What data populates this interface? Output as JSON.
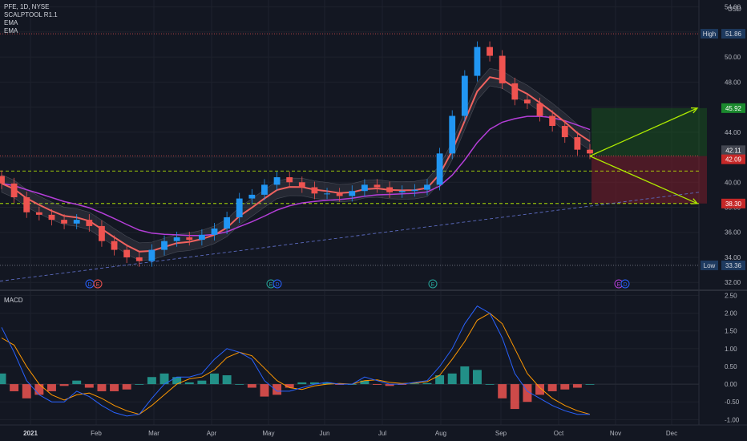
{
  "legend": {
    "symbol_line": "PFE, 1D, NYSE",
    "indicator_1": "SCALPTOOL R1.1",
    "indicator_2": "EMA",
    "indicator_3": "EMA"
  },
  "macd_title": "MACD",
  "price_tags": {
    "high_label": "High",
    "high_value": "51.86",
    "target_value": "45.92",
    "current_a": "42.11",
    "current_b": "42.09",
    "stop_value": "38.30",
    "low_label": "Low",
    "low_value": "33.36"
  },
  "earnings_markers": [
    "D",
    "E",
    "E",
    "D",
    "E",
    "E",
    "D"
  ],
  "colors": {
    "background": "#131722",
    "up": "#2196f3",
    "down": "#ef5350",
    "ema_fast": "#f0625f",
    "ema_slow": "#b43ed8",
    "macd_line": "#2962ff",
    "signal_line": "#ff9800",
    "hist_pos": "#26a69a",
    "hist_neg": "#ef5350",
    "target_zone": "#1b5e20",
    "stop_zone": "#7b1e2a",
    "arrow": "#aeea00"
  },
  "chart_data": [
    {
      "type": "candlestick",
      "title": "PFE, 1D, NYSE",
      "x_ticks": [
        "2021",
        "Feb",
        "Mar",
        "Apr",
        "May",
        "Jun",
        "Jul",
        "Aug",
        "Sep",
        "Oct",
        "Nov",
        "Dec"
      ],
      "y_unit": "USD",
      "y_ticks": [
        "54.00",
        "52.00",
        "50.00",
        "48.00",
        "46.00",
        "44.00",
        "42.00",
        "40.00",
        "38.00",
        "36.00",
        "34.00",
        "32.00"
      ],
      "ylim": [
        31.5,
        54.3
      ],
      "series": [
        {
          "name": "PFE",
          "values_close": [
            39.9,
            38.8,
            37.6,
            37.4,
            37.0,
            36.7,
            37.0,
            36.5,
            35.3,
            34.6,
            34.0,
            33.7,
            34.6,
            35.3,
            35.6,
            35.4,
            35.8,
            36.3,
            37.2,
            38.7,
            39.0,
            39.8,
            40.4,
            40.0,
            39.6,
            39.1,
            39.1,
            38.9,
            39.3,
            39.8,
            39.6,
            39.2,
            39.3,
            39.4,
            39.8,
            42.3,
            45.3,
            48.5,
            50.8,
            50.1,
            47.9,
            46.6,
            46.3,
            45.3,
            44.5,
            43.6,
            42.6,
            42.3
          ]
        }
      ],
      "levels": {
        "high": 51.86,
        "target": 45.92,
        "current": 42.09,
        "stop": 38.3,
        "low": 33.36
      }
    },
    {
      "type": "line",
      "title": "MACD",
      "y_ticks": [
        "2.50",
        "2.00",
        "1.50",
        "1.00",
        "0.50",
        "0.00",
        "-0.50",
        "-1.00"
      ],
      "ylim": [
        -1.15,
        2.6
      ],
      "series": [
        {
          "name": "MACD",
          "values": [
            1.6,
            0.9,
            0.1,
            -0.3,
            -0.5,
            -0.5,
            -0.2,
            -0.35,
            -0.6,
            -0.8,
            -0.9,
            -0.85,
            -0.4,
            0,
            0.2,
            0.2,
            0.3,
            0.7,
            1.0,
            0.9,
            0.7,
            0.1,
            -0.2,
            -0.2,
            -0.1,
            0,
            0.05,
            0,
            0,
            0.2,
            0.1,
            0,
            0,
            0.05,
            0.1,
            0.5,
            1.0,
            1.7,
            2.2,
            2.0,
            1.3,
            0.3,
            -0.2,
            -0.4,
            -0.6,
            -0.75,
            -0.85,
            -0.85
          ]
        },
        {
          "name": "Signal",
          "values": [
            1.3,
            1.1,
            0.5,
            0,
            -0.3,
            -0.45,
            -0.3,
            -0.25,
            -0.4,
            -0.6,
            -0.75,
            -0.85,
            -0.6,
            -0.3,
            0,
            0.15,
            0.2,
            0.4,
            0.75,
            0.9,
            0.8,
            0.45,
            0.1,
            -0.1,
            -0.15,
            -0.05,
            0,
            0.02,
            0,
            0.1,
            0.12,
            0.05,
            0.02,
            0.03,
            0.07,
            0.25,
            0.7,
            1.2,
            1.8,
            2.0,
            1.7,
            1.0,
            0.3,
            -0.1,
            -0.4,
            -0.6,
            -0.75,
            -0.85
          ]
        }
      ]
    }
  ]
}
